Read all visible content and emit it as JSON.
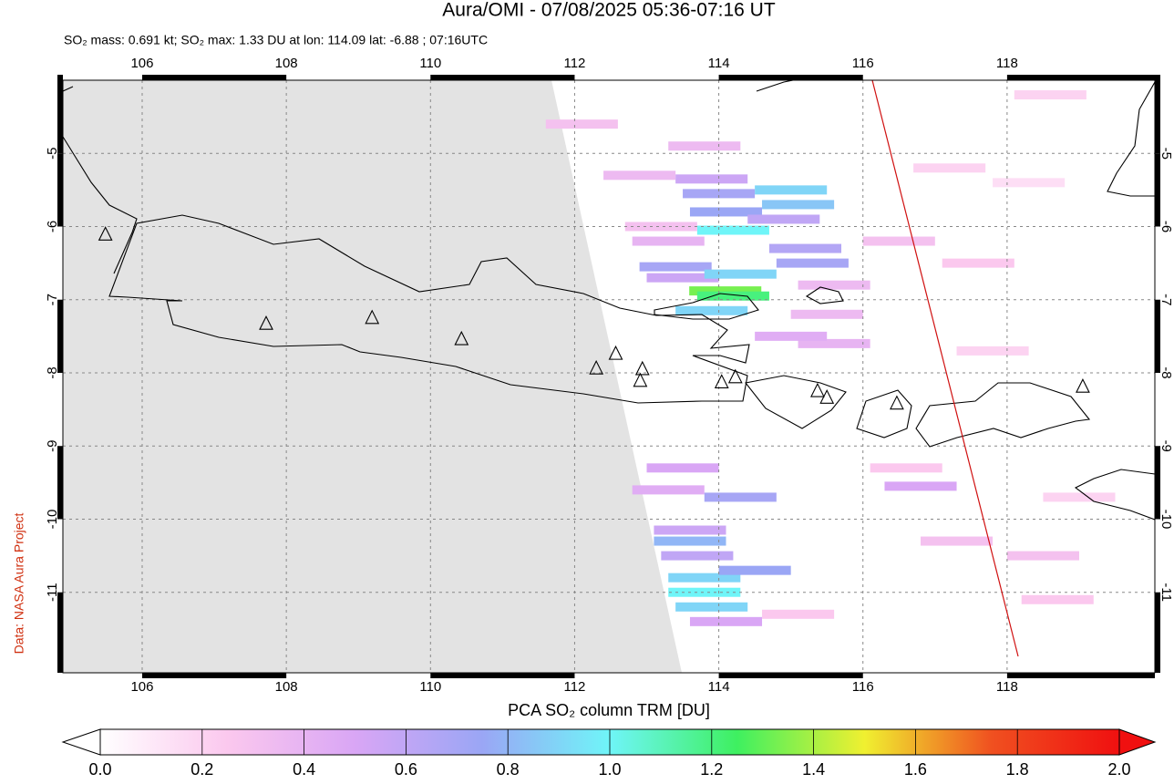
{
  "chart_data": {
    "type": "map",
    "title": "Aura/OMI - 07/08/2025 05:36-07:16 UT",
    "subtitle": "SO₂ mass: 0.691 kt; SO₂ max: 1.33 DU at lon: 114.09 lat: -6.88 ; 07:16UTC",
    "credit": "Data: NASA Aura Project",
    "xlim": [
      104.9,
      120.05
    ],
    "ylim": [
      -12.1,
      -4.0
    ],
    "xticks": [
      106,
      108,
      110,
      112,
      114,
      116,
      118
    ],
    "yticks": [
      -5,
      -6,
      -7,
      -8,
      -9,
      -10,
      -11
    ],
    "grid": true,
    "so2_cells": {
      "lon": [
        113.9,
        114.0,
        114.1,
        114.2,
        115.0,
        115.1,
        114.9,
        115.2,
        115.3,
        113.4,
        113.5,
        114.3,
        114.09,
        114.2,
        113.9,
        113.3,
        113.2,
        112.9,
        113.8,
        112.1,
        115.6,
        115.5,
        115.6,
        115.0,
        116.5,
        117.2,
        118.3,
        118.6,
        117.6,
        117.8,
        113.5,
        113.3,
        114.3,
        113.6,
        113.6,
        113.7,
        113.8,
        113.8,
        113.9,
        114.5,
        114.1,
        116.8,
        117.3,
        118.5,
        118.7,
        115.1,
        119.0,
        116.6
      ],
      "lat": [
        -5.35,
        -5.55,
        -5.8,
        -6.05,
        -5.5,
        -5.7,
        -5.9,
        -6.3,
        -6.5,
        -6.55,
        -6.7,
        -6.65,
        -6.88,
        -6.95,
        -7.15,
        -6.2,
        -6.0,
        -5.3,
        -4.9,
        -4.6,
        -6.8,
        -7.2,
        -7.6,
        -7.5,
        -6.2,
        -5.2,
        -5.4,
        -4.2,
        -6.5,
        -7.7,
        -9.3,
        -9.6,
        -9.7,
        -10.15,
        -10.3,
        -10.5,
        -10.8,
        -11.0,
        -11.2,
        -10.7,
        -11.4,
        -9.55,
        -10.3,
        -10.5,
        -11.1,
        -11.3,
        -9.7,
        -9.3
      ],
      "value": [
        0.55,
        0.7,
        0.75,
        1.0,
        0.9,
        0.85,
        0.6,
        0.65,
        0.7,
        0.7,
        0.55,
        0.9,
        1.33,
        1.2,
        0.9,
        0.4,
        0.3,
        0.35,
        0.35,
        0.3,
        0.35,
        0.35,
        0.4,
        0.45,
        0.3,
        0.2,
        0.15,
        0.2,
        0.25,
        0.2,
        0.5,
        0.45,
        0.7,
        0.55,
        0.8,
        0.6,
        0.9,
        1.0,
        0.9,
        0.75,
        0.5,
        0.5,
        0.3,
        0.3,
        0.25,
        0.25,
        0.2,
        0.25
      ]
    },
    "volcanoes": {
      "lon": [
        105.49,
        107.72,
        109.19,
        110.43,
        112.3,
        112.57,
        112.94,
        112.91,
        114.04,
        114.23,
        115.37,
        115.5,
        116.47,
        119.05
      ],
      "lat": [
        -6.11,
        -7.33,
        -7.25,
        -7.54,
        -7.94,
        -7.74,
        -7.95,
        -8.11,
        -8.13,
        -8.06,
        -8.25,
        -8.34,
        -8.42,
        -8.19
      ]
    },
    "colorbar": {
      "label": "PCA SO₂ column TRM [DU]",
      "lim": [
        0,
        2
      ],
      "ticks": [
        {
          "value": 0,
          "label": "0.0"
        },
        {
          "value": 0.2,
          "label": "0.2"
        },
        {
          "value": 0.4,
          "label": "0.4"
        },
        {
          "value": 0.6,
          "label": "0.6"
        },
        {
          "value": 0.8,
          "label": "0.8"
        },
        {
          "value": 1,
          "label": "1.0"
        },
        {
          "value": 1.2,
          "label": "1.2"
        },
        {
          "value": 1.4,
          "label": "1.4"
        },
        {
          "value": 1.6,
          "label": "1.6"
        },
        {
          "value": 1.8,
          "label": "1.8"
        },
        {
          "value": 2,
          "label": "2.0"
        }
      ],
      "colormap": [
        "#ffffff",
        "#fbc8ee",
        "#d9a6f5",
        "#9aa6f5",
        "#6ff5f8",
        "#3ef060",
        "#f0f030",
        "#f05020",
        "#f01010"
      ]
    }
  }
}
